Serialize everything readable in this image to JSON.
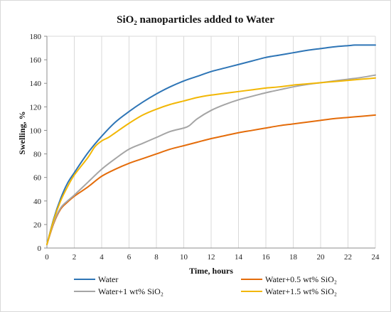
{
  "chart_data": {
    "type": "line",
    "title": "SiO₂ nanoparticles added to Water",
    "xlabel": "Time, hours",
    "ylabel": "Swelling, %",
    "xlim": [
      0,
      24
    ],
    "ylim": [
      0,
      180
    ],
    "x_ticks": [
      "0",
      "2",
      "4",
      "6",
      "8",
      "10",
      "12",
      "14",
      "16",
      "18",
      "20",
      "22",
      "24"
    ],
    "y_ticks": [
      "0",
      "20",
      "40",
      "60",
      "80",
      "100",
      "120",
      "140",
      "160",
      "180"
    ],
    "grid": "vertical",
    "legend_position": "bottom",
    "series": [
      {
        "name": "Water",
        "color": "#2e75b6",
        "x": [
          0,
          0.5,
          1,
          1.5,
          2,
          3,
          4,
          5,
          6,
          7,
          8,
          9,
          10,
          11,
          12,
          13,
          14,
          15,
          16,
          17,
          18,
          19,
          20,
          21,
          22,
          22.5,
          23,
          24
        ],
        "y": [
          3,
          25,
          42,
          55,
          64,
          81,
          95,
          107,
          116,
          124,
          131,
          137,
          142,
          146,
          150,
          153,
          156,
          159,
          162,
          164,
          166,
          168,
          169.5,
          171,
          172,
          172.5,
          172.5,
          172.5
        ]
      },
      {
        "name": "Water+0.5 wt% SiO₂",
        "color": "#e46c0a",
        "x": [
          0,
          0.5,
          1,
          1.5,
          2,
          3,
          4,
          5,
          6,
          7,
          8,
          9,
          10,
          11,
          12,
          13,
          14,
          15,
          16,
          17,
          18,
          19,
          20,
          21,
          22,
          23,
          24
        ],
        "y": [
          3,
          21,
          33,
          39,
          44,
          52,
          61,
          67,
          72,
          76,
          80,
          84,
          87,
          90,
          93,
          95.5,
          98,
          100,
          102,
          104,
          105.5,
          107,
          108.5,
          110,
          111,
          112,
          113
        ]
      },
      {
        "name": "Water+1 wt% SiO₂",
        "color": "#a5a5a5",
        "x": [
          0,
          0.5,
          1,
          1.5,
          2,
          3,
          4,
          5,
          6,
          7,
          8,
          9,
          10,
          10.4,
          11,
          12,
          13,
          14,
          15,
          16,
          17,
          18,
          19,
          20,
          21,
          22,
          23,
          24
        ],
        "y": [
          3,
          22,
          34,
          40,
          45,
          56,
          67,
          76,
          84,
          89,
          94,
          99,
          102,
          104,
          110,
          117,
          122,
          126,
          129,
          132,
          134.5,
          137,
          139,
          140.5,
          142,
          143.5,
          145,
          147
        ]
      },
      {
        "name": "Water+1.5 wt% SiO₂",
        "color": "#f2b705",
        "x": [
          0,
          0.5,
          1,
          1.5,
          2,
          3,
          3.5,
          4,
          4.5,
          5,
          6,
          7,
          8,
          9,
          10,
          11,
          12,
          13,
          14,
          15,
          16,
          17,
          18,
          19,
          20,
          21,
          22,
          23,
          24
        ],
        "y": [
          3,
          24,
          40,
          52,
          62,
          77,
          86,
          91,
          94,
          98,
          106,
          113,
          118,
          122,
          125,
          128,
          130,
          131.5,
          133,
          134.5,
          136,
          137,
          138.5,
          139.5,
          140.5,
          141.5,
          142.5,
          143.5,
          144.5
        ]
      }
    ]
  }
}
